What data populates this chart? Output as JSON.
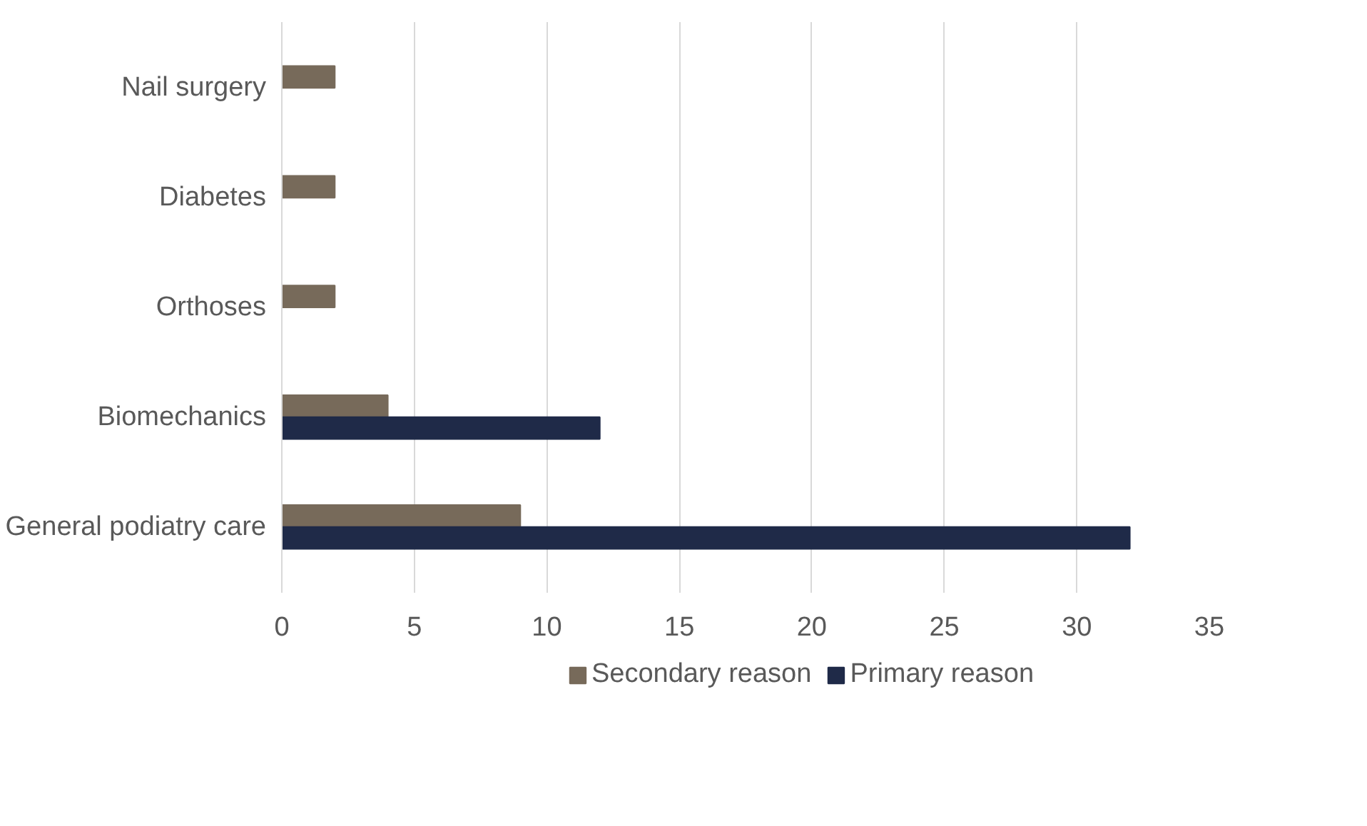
{
  "chart_data": {
    "type": "bar",
    "orientation": "horizontal",
    "categories": [
      "Nail surgery",
      "Diabetes",
      "Orthoses",
      "Biomechanics",
      "General podiatry care"
    ],
    "series": [
      {
        "name": "Secondary reason",
        "color": "#776a5a",
        "values": [
          2,
          2,
          2,
          4,
          9
        ]
      },
      {
        "name": "Primary reason",
        "color": "#1f2a48",
        "values": [
          null,
          null,
          null,
          12,
          32
        ]
      }
    ],
    "xlim": [
      0,
      35
    ],
    "xticks": [
      0,
      5,
      10,
      15,
      20,
      25,
      30,
      35
    ],
    "grid": "x",
    "legend": "bottom"
  }
}
